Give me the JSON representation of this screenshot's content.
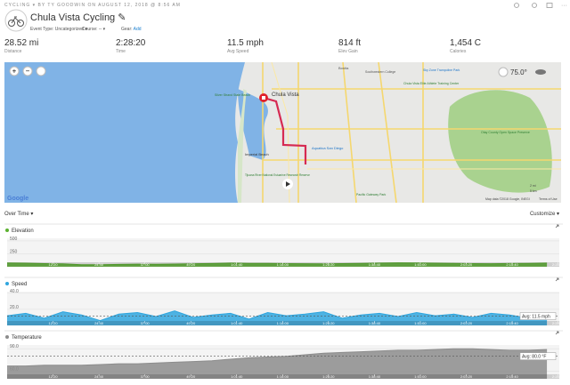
{
  "header": {
    "category": "CYCLING",
    "byline": "BY TY GOODWIN ON AUGUST 12, 2018 @ 8:56 AM",
    "title": "Chula Vista Cycling",
    "meta": [
      "Event Type: Uncategorized",
      "Course: --",
      "Gear:",
      "Add"
    ]
  },
  "stats": [
    {
      "value": "28.52 mi",
      "label": "Distance"
    },
    {
      "value": "2:28:20",
      "label": "Time"
    },
    {
      "value": "11.5 mph",
      "label": "Avg Speed"
    },
    {
      "value": "814 ft",
      "label": "Elev Gain"
    },
    {
      "value": "1,454 C",
      "label": "Calories"
    }
  ],
  "map": {
    "weather": "75.0°",
    "labels": [
      "Chula Vista",
      "Silver Strand State Beach",
      "Imperial Beach",
      "Aquatica San Diego",
      "Otay County Open Space Preserve",
      "Sky Zone Trampoline Park",
      "Chula Vista Elite Athlete Training Center",
      "Southwestern College",
      "Bonita",
      "Pacific Gateway Park",
      "Tijuana River National Estuarine Research Reserve"
    ],
    "logo": "Google",
    "attribution": "Map data ©2018 Google, INEGI",
    "terms": "Terms of Use",
    "scale": [
      "2 mi",
      "5 km"
    ]
  },
  "controls": {
    "left": "Over Time",
    "right": "Customize"
  },
  "chart_data": [
    {
      "type": "area",
      "title": "Elevation",
      "color": "#5cb130",
      "x": [
        0,
        300,
        600,
        900,
        1200,
        1500,
        1800,
        2100,
        2400,
        2700,
        3000,
        3300,
        3600,
        3900,
        4200,
        4500,
        4800,
        5100,
        5400,
        5700,
        6000,
        6300,
        6600,
        6900,
        7200,
        7500,
        7800,
        8100,
        8400,
        8700
      ],
      "values": [
        72,
        68,
        60,
        55,
        40,
        38,
        45,
        50,
        48,
        52,
        58,
        62,
        70,
        66,
        64,
        60,
        58,
        55,
        60,
        66,
        70,
        75,
        72,
        68,
        65,
        60,
        58,
        62,
        66,
        70
      ],
      "xlim": [
        0,
        8900
      ],
      "ylim": [
        0,
        550
      ],
      "yticks": [
        250,
        500
      ],
      "xticks": [
        {
          "value": 740,
          "label": "12:20"
        },
        {
          "value": 1480,
          "label": "24:40"
        },
        {
          "value": 2220,
          "label": "37:00"
        },
        {
          "value": 2960,
          "label": "49:20"
        },
        {
          "value": 3700,
          "label": "1:01:40"
        },
        {
          "value": 4440,
          "label": "1:14:00"
        },
        {
          "value": 5180,
          "label": "1:26:20"
        },
        {
          "value": 5920,
          "label": "1:38:40"
        },
        {
          "value": 6660,
          "label": "1:51:00"
        },
        {
          "value": 7400,
          "label": "2:03:20"
        },
        {
          "value": 8140,
          "label": "2:15:40"
        },
        {
          "value": 8880,
          "label": "2:28:00"
        }
      ]
    },
    {
      "type": "area",
      "title": "Speed",
      "color": "#30a6de",
      "x": [
        0,
        300,
        600,
        900,
        1200,
        1500,
        1800,
        2100,
        2400,
        2700,
        3000,
        3300,
        3600,
        3900,
        4200,
        4500,
        4800,
        5100,
        5400,
        5700,
        6000,
        6300,
        6600,
        6900,
        7200,
        7500,
        7800,
        8100,
        8400,
        8700
      ],
      "values": [
        12,
        15,
        9,
        17,
        13,
        6,
        14,
        16,
        11,
        18,
        10,
        13,
        15,
        8,
        16,
        12,
        14,
        17,
        9,
        13,
        15,
        11,
        16,
        12,
        14,
        10,
        15,
        13,
        9,
        7
      ],
      "xlim": [
        0,
        8900
      ],
      "ylim": [
        0,
        42
      ],
      "yticks": [
        {
          "value": 20,
          "label": "20.0"
        },
        {
          "value": 40,
          "label": "40.0"
        }
      ],
      "avg": 11.5,
      "avg_label": "Avg: 11.5 mph",
      "xticks": [
        {
          "value": 740,
          "label": "12:20"
        },
        {
          "value": 1480,
          "label": "24:40"
        },
        {
          "value": 2220,
          "label": "37:00"
        },
        {
          "value": 2960,
          "label": "49:20"
        },
        {
          "value": 3700,
          "label": "1:01:40"
        },
        {
          "value": 4440,
          "label": "1:14:00"
        },
        {
          "value": 5180,
          "label": "1:26:20"
        },
        {
          "value": 5920,
          "label": "1:38:40"
        },
        {
          "value": 6660,
          "label": "1:51:00"
        },
        {
          "value": 7400,
          "label": "2:03:20"
        },
        {
          "value": 8140,
          "label": "2:15:40"
        },
        {
          "value": 8880,
          "label": "2:28:00"
        }
      ]
    },
    {
      "type": "area",
      "title": "Temperature",
      "color": "#8c8c8c",
      "x": [
        0,
        300,
        600,
        900,
        1200,
        1500,
        1800,
        2100,
        2400,
        2700,
        3000,
        3300,
        3600,
        3900,
        4200,
        4500,
        4800,
        5100,
        5400,
        5700,
        6000,
        6300,
        6600,
        6900,
        7200,
        7500,
        7800,
        8100,
        8400,
        8700
      ],
      "values": [
        67,
        67,
        68,
        68,
        68,
        69,
        70,
        70,
        71,
        72,
        73,
        74,
        76,
        78,
        79,
        80,
        82,
        84,
        85,
        86,
        87,
        88,
        88,
        89,
        90,
        90,
        89,
        88,
        88,
        89
      ],
      "xlim": [
        0,
        8900
      ],
      "ylim": [
        50,
        95
      ],
      "yticks": [
        {
          "value": 60,
          "label": "60.0"
        },
        {
          "value": 90,
          "label": "90.0"
        }
      ],
      "avg": 80,
      "avg_label": "Avg: 80.0 °F",
      "xticks": [
        {
          "value": 740,
          "label": "12:20"
        },
        {
          "value": 1480,
          "label": "24:40"
        },
        {
          "value": 2220,
          "label": "37:00"
        },
        {
          "value": 2960,
          "label": "49:20"
        },
        {
          "value": 3700,
          "label": "1:01:40"
        },
        {
          "value": 4440,
          "label": "1:14:00"
        },
        {
          "value": 5180,
          "label": "1:26:20"
        },
        {
          "value": 5920,
          "label": "1:38:40"
        },
        {
          "value": 6660,
          "label": "1:51:00"
        },
        {
          "value": 7400,
          "label": "2:03:20"
        },
        {
          "value": 8140,
          "label": "2:15:40"
        },
        {
          "value": 8880,
          "label": "2:28:00"
        }
      ]
    }
  ]
}
